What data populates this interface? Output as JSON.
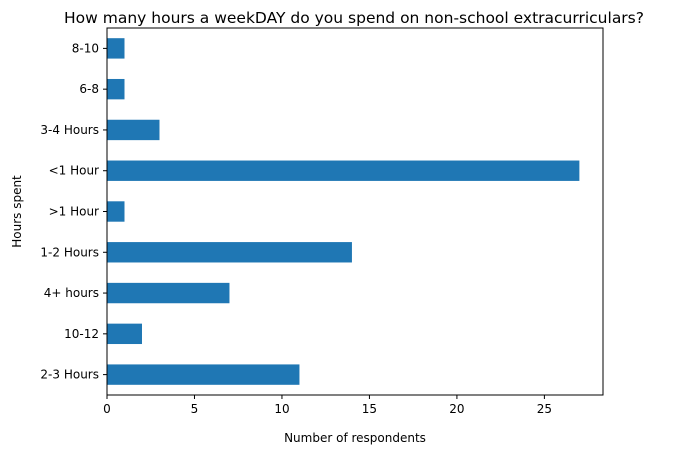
{
  "chart_data": {
    "type": "bar",
    "orientation": "horizontal",
    "title": "How many hours a weekDAY do you spend on non-school extracurriculars?",
    "xlabel": "Number of respondents",
    "ylabel": "Hours spent",
    "categories": [
      "2-3 Hours",
      "10-12",
      "4+ hours",
      "1-2 Hours",
      ">1 Hour",
      "<1 Hour",
      "3-4 Hours",
      "6-8",
      "8-10"
    ],
    "values": [
      11,
      2,
      7,
      14,
      1,
      27,
      3,
      1,
      1
    ],
    "xlim": [
      0,
      28.35
    ],
    "xticks": [
      0,
      5,
      10,
      15,
      20,
      25
    ],
    "grid": false,
    "bar_color": "#1f77b4"
  }
}
